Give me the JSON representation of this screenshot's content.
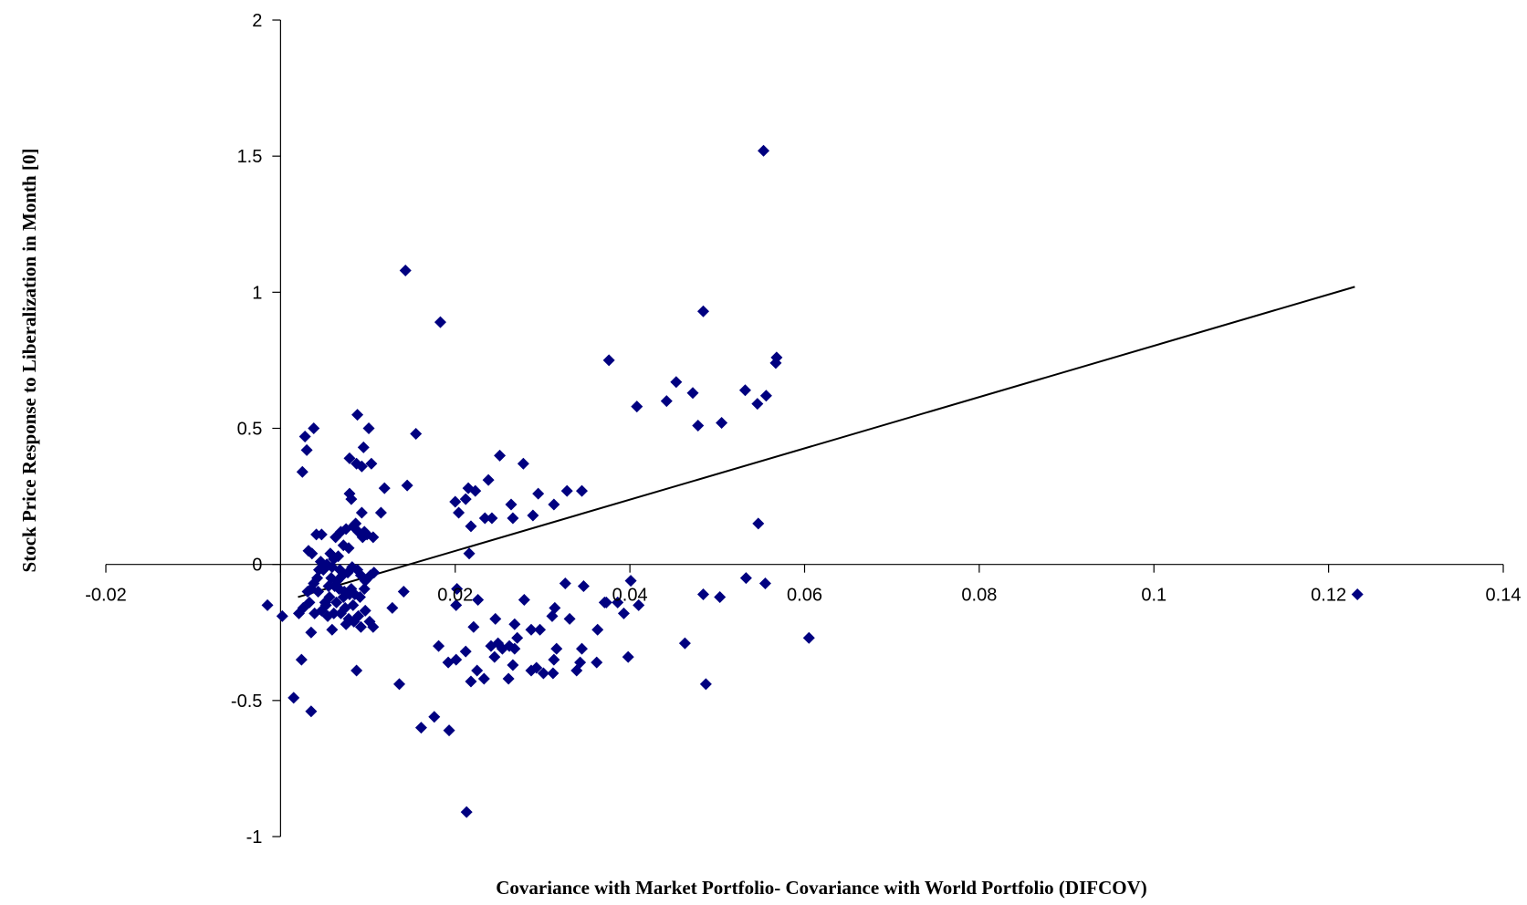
{
  "chart_data": {
    "type": "scatter",
    "title": "",
    "xlabel": "Covariance with Market Portfolio- Covariance with World Portfolio (DIFCOV)",
    "ylabel": "Stock Price Response to Liberalization in Month [0]",
    "xlim": [
      -0.02,
      0.14
    ],
    "ylim": [
      -1,
      2
    ],
    "x_ticks": [
      -0.02,
      0,
      0.02,
      0.04,
      0.06,
      0.08,
      0.1,
      0.12,
      0.14
    ],
    "x_tick_labels": [
      "-0.02",
      "",
      "0.02",
      "0.04",
      "0.06",
      "0.08",
      "0.1",
      "0.12",
      "0.14"
    ],
    "y_ticks": [
      -1,
      -0.5,
      0,
      0.5,
      1,
      1.5,
      2
    ],
    "y_tick_labels": [
      "-1",
      "-0.5",
      "0",
      "0.5",
      "1",
      "1.5",
      "2"
    ],
    "grid": false,
    "legend": "none",
    "marker": "diamond",
    "marker_color": "#000080",
    "line_color": "#000000",
    "trendline": {
      "x": [
        0.002,
        0.123
      ],
      "y": [
        -0.12,
        1.02
      ]
    },
    "points": [
      [
        0.0553,
        1.52
      ],
      [
        0.0143,
        1.08
      ],
      [
        0.0183,
        0.89
      ],
      [
        0.0484,
        0.93
      ],
      [
        0.0376,
        0.75
      ],
      [
        0.0568,
        0.76
      ],
      [
        0.0567,
        0.74
      ],
      [
        0.0453,
        0.67
      ],
      [
        0.0532,
        0.64
      ],
      [
        0.0472,
        0.63
      ],
      [
        0.0442,
        0.6
      ],
      [
        0.0556,
        0.62
      ],
      [
        0.0546,
        0.59
      ],
      [
        0.0408,
        0.58
      ],
      [
        0.0478,
        0.51
      ],
      [
        0.0505,
        0.52
      ],
      [
        0.0547,
        0.15
      ],
      [
        0.0533,
        -0.05
      ],
      [
        0.0555,
        -0.07
      ],
      [
        0.0484,
        -0.11
      ],
      [
        0.0503,
        -0.12
      ],
      [
        0.0605,
        -0.27
      ],
      [
        0.0463,
        -0.29
      ],
      [
        0.0487,
        -0.44
      ],
      [
        0.1233,
        -0.11
      ],
      [
        0.0345,
        0.27
      ],
      [
        0.0328,
        0.27
      ],
      [
        0.0313,
        0.22
      ],
      [
        0.0295,
        0.26
      ],
      [
        0.0278,
        0.37
      ],
      [
        0.0251,
        0.4
      ],
      [
        0.0289,
        0.18
      ],
      [
        0.0264,
        0.22
      ],
      [
        0.0266,
        0.17
      ],
      [
        0.0238,
        0.31
      ],
      [
        0.0242,
        0.17
      ],
      [
        0.0223,
        0.27
      ],
      [
        0.0212,
        0.24
      ],
      [
        0.0215,
        0.28
      ],
      [
        0.0204,
        0.19
      ],
      [
        0.02,
        0.23
      ],
      [
        0.0218,
        0.14
      ],
      [
        0.0234,
        0.17
      ],
      [
        0.0216,
        0.04
      ],
      [
        0.0155,
        0.48
      ],
      [
        0.0145,
        0.29
      ],
      [
        0.0401,
        -0.06
      ],
      [
        0.0347,
        -0.08
      ],
      [
        0.0326,
        -0.07
      ],
      [
        0.0386,
        -0.14
      ],
      [
        0.0371,
        -0.14
      ],
      [
        0.0393,
        -0.18
      ],
      [
        0.041,
        -0.15
      ],
      [
        0.0373,
        -0.14
      ],
      [
        0.0331,
        -0.2
      ],
      [
        0.0314,
        -0.16
      ],
      [
        0.0311,
        -0.19
      ],
      [
        0.0297,
        -0.24
      ],
      [
        0.0287,
        -0.24
      ],
      [
        0.0279,
        -0.13
      ],
      [
        0.0268,
        -0.22
      ],
      [
        0.0271,
        -0.27
      ],
      [
        0.0262,
        -0.3
      ],
      [
        0.0254,
        -0.31
      ],
      [
        0.0246,
        -0.2
      ],
      [
        0.0241,
        -0.3
      ],
      [
        0.0245,
        -0.34
      ],
      [
        0.0249,
        -0.29
      ],
      [
        0.0268,
        -0.31
      ],
      [
        0.0266,
        -0.37
      ],
      [
        0.0261,
        -0.42
      ],
      [
        0.0233,
        -0.42
      ],
      [
        0.0225,
        -0.39
      ],
      [
        0.0218,
        -0.43
      ],
      [
        0.0221,
        -0.23
      ],
      [
        0.0226,
        -0.13
      ],
      [
        0.0212,
        -0.32
      ],
      [
        0.0201,
        -0.35
      ],
      [
        0.0192,
        -0.36
      ],
      [
        0.0181,
        -0.3
      ],
      [
        0.0287,
        -0.39
      ],
      [
        0.0293,
        -0.38
      ],
      [
        0.0301,
        -0.4
      ],
      [
        0.0312,
        -0.4
      ],
      [
        0.0316,
        -0.31
      ],
      [
        0.0313,
        -0.35
      ],
      [
        0.0339,
        -0.39
      ],
      [
        0.0345,
        -0.31
      ],
      [
        0.0362,
        -0.36
      ],
      [
        0.0343,
        -0.36
      ],
      [
        0.0363,
        -0.24
      ],
      [
        0.0398,
        -0.34
      ],
      [
        0.0201,
        -0.15
      ],
      [
        0.0202,
        -0.09
      ],
      [
        0.0213,
        -0.91
      ],
      [
        0.0193,
        -0.61
      ],
      [
        0.0161,
        -0.6
      ],
      [
        0.0176,
        -0.56
      ],
      [
        0.0136,
        -0.44
      ],
      [
        0.0141,
        -0.1
      ],
      [
        0.0128,
        -0.16
      ],
      [
        0.0028,
        0.47
      ],
      [
        0.0038,
        0.5
      ],
      [
        0.003,
        0.42
      ],
      [
        0.0025,
        0.34
      ],
      [
        0.0088,
        0.55
      ],
      [
        0.0101,
        0.5
      ],
      [
        0.0095,
        0.43
      ],
      [
        0.0079,
        0.39
      ],
      [
        0.0087,
        0.37
      ],
      [
        0.0093,
        0.36
      ],
      [
        0.0104,
        0.37
      ],
      [
        0.0119,
        0.28
      ],
      [
        0.0079,
        0.26
      ],
      [
        0.0081,
        0.24
      ],
      [
        0.0115,
        0.19
      ],
      [
        0.0093,
        0.19
      ],
      [
        0.0032,
        0.05
      ],
      [
        0.0047,
        0.11
      ],
      [
        0.0041,
        0.11
      ],
      [
        0.0036,
        0.04
      ],
      [
        0.0057,
        0.04
      ],
      [
        0.0063,
        0.1
      ],
      [
        0.0069,
        0.12
      ],
      [
        0.0075,
        0.13
      ],
      [
        0.0083,
        0.14
      ],
      [
        0.0089,
        0.12
      ],
      [
        0.0094,
        0.1
      ],
      [
        0.0099,
        0.11
      ],
      [
        0.0106,
        0.1
      ],
      [
        0.0086,
        0.15
      ],
      [
        0.0096,
        0.12
      ],
      [
        0.0078,
        0.06
      ],
      [
        0.0072,
        0.07
      ],
      [
        0.0066,
        0.03
      ],
      [
        0.0061,
        0.02
      ],
      [
        0.0053,
        0.0
      ],
      [
        0.0049,
        -0.02
      ],
      [
        0.0046,
        0.01
      ],
      [
        0.0059,
        -0.01
      ],
      [
        0.0068,
        -0.02
      ],
      [
        0.0071,
        -0.04
      ],
      [
        0.0077,
        -0.03
      ],
      [
        0.0082,
        -0.01
      ],
      [
        0.0088,
        -0.02
      ],
      [
        0.0092,
        -0.04
      ],
      [
        0.0097,
        -0.06
      ],
      [
        0.0103,
        -0.04
      ],
      [
        0.0107,
        -0.03
      ],
      [
        0.0042,
        -0.05
      ],
      [
        0.0038,
        -0.07
      ],
      [
        0.0035,
        -0.09
      ],
      [
        0.0031,
        -0.1
      ],
      [
        0.0043,
        -0.1
      ],
      [
        0.0055,
        -0.08
      ],
      [
        0.0062,
        -0.08
      ],
      [
        0.0067,
        -0.09
      ],
      [
        0.0073,
        -0.1
      ],
      [
        0.0079,
        -0.11
      ],
      [
        0.0085,
        -0.11
      ],
      [
        0.0091,
        -0.12
      ],
      [
        0.0096,
        -0.09
      ],
      [
        0.0056,
        -0.12
      ],
      [
        0.0051,
        -0.14
      ],
      [
        0.0064,
        -0.14
      ],
      [
        0.0074,
        -0.16
      ],
      [
        0.0083,
        -0.15
      ],
      [
        0.0089,
        -0.19
      ],
      [
        0.0097,
        -0.17
      ],
      [
        0.0102,
        -0.21
      ],
      [
        0.0106,
        -0.23
      ],
      [
        0.0092,
        -0.23
      ],
      [
        0.0084,
        -0.21
      ],
      [
        0.0078,
        -0.2
      ],
      [
        0.0069,
        -0.18
      ],
      [
        0.0061,
        -0.18
      ],
      [
        0.0054,
        -0.19
      ],
      [
        0.0047,
        -0.17
      ],
      [
        0.0039,
        -0.18
      ],
      [
        0.0033,
        -0.14
      ],
      [
        0.0026,
        -0.16
      ],
      [
        0.0021,
        -0.18
      ],
      [
        -0.0015,
        -0.15
      ],
      [
        0.0002,
        -0.19
      ],
      [
        0.0059,
        -0.24
      ],
      [
        0.0075,
        -0.22
      ],
      [
        0.0035,
        -0.25
      ],
      [
        0.0024,
        -0.35
      ],
      [
        0.0087,
        -0.39
      ],
      [
        0.0015,
        -0.49
      ],
      [
        0.0035,
        -0.54
      ],
      [
        0.0065,
        -0.06
      ],
      [
        0.0072,
        -0.12
      ],
      [
        0.0058,
        -0.05
      ],
      [
        0.0044,
        -0.02
      ],
      [
        0.0052,
        -0.15
      ],
      [
        0.0081,
        -0.09
      ]
    ]
  }
}
